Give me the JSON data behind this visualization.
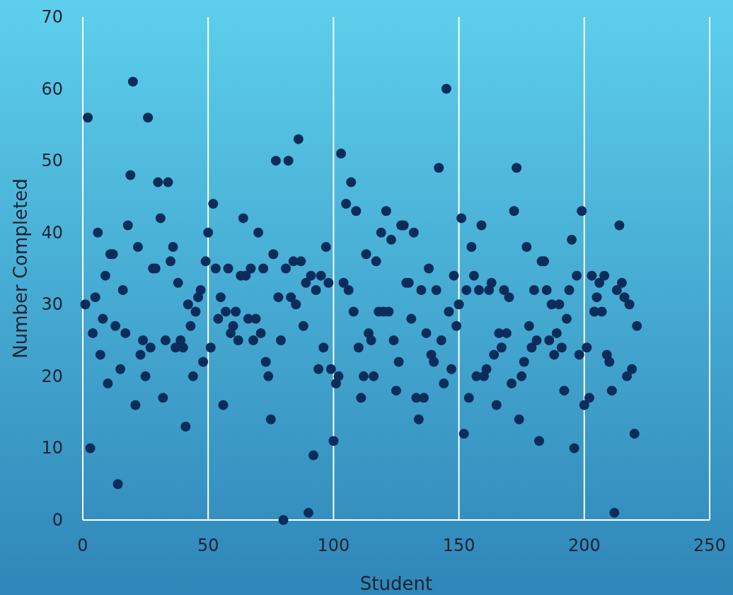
{
  "chart_data": {
    "type": "scatter",
    "xlabel": "Student",
    "ylabel": "Number Completed",
    "xlim": [
      0,
      250
    ],
    "xticks": [
      0,
      50,
      100,
      150,
      200,
      250
    ],
    "ylim": [
      0,
      70
    ],
    "yticks": [
      0,
      10,
      20,
      30,
      40,
      50,
      60,
      70
    ],
    "grid": "x",
    "marker": "circle",
    "series": [
      {
        "color": "#0c2d5c",
        "x": [
          1,
          2,
          3,
          4,
          5,
          6,
          7,
          8,
          9,
          10,
          11,
          12,
          13,
          14,
          15,
          16,
          17,
          18,
          19,
          20,
          21,
          22,
          23,
          24,
          25,
          26,
          27,
          28,
          29,
          30,
          31,
          32,
          33,
          34,
          35,
          36,
          37,
          38,
          39,
          40,
          41,
          42,
          43,
          44,
          45,
          46,
          47,
          48,
          49,
          50,
          51,
          52,
          53,
          54,
          55,
          56,
          57,
          58,
          59,
          60,
          61,
          62,
          63,
          64,
          65,
          66,
          67,
          68,
          69,
          70,
          71,
          72,
          73,
          74,
          75,
          76,
          77,
          78,
          79,
          80,
          81,
          82,
          83,
          84,
          85,
          86,
          87,
          88,
          89,
          90,
          91,
          92,
          93,
          94,
          95,
          96,
          97,
          98,
          99,
          100,
          101,
          102,
          103,
          104,
          105,
          106,
          107,
          108,
          109,
          110,
          111,
          112,
          113,
          114,
          115,
          116,
          117,
          118,
          119,
          120,
          121,
          122,
          123,
          124,
          125,
          126,
          127,
          128,
          129,
          130,
          131,
          132,
          133,
          134,
          135,
          136,
          137,
          138,
          139,
          140,
          141,
          142,
          143,
          144,
          145,
          146,
          147,
          148,
          149,
          150,
          151,
          152,
          153,
          154,
          155,
          156,
          157,
          158,
          159,
          160,
          161,
          162,
          163,
          164,
          165,
          166,
          167,
          168,
          169,
          170,
          171,
          172,
          173,
          174,
          175,
          176,
          177,
          178,
          179,
          180,
          181,
          182,
          183,
          184,
          185,
          186,
          187,
          188,
          189,
          190,
          191,
          192,
          193,
          194,
          195,
          196,
          197,
          198,
          199,
          200,
          201,
          202,
          203,
          204,
          205,
          206,
          207,
          208,
          209,
          210,
          211,
          212,
          213,
          214,
          215,
          216,
          217,
          218,
          219,
          220,
          221
        ],
        "values": [
          30,
          56,
          10,
          26,
          31,
          40,
          23,
          28,
          34,
          19,
          37,
          37,
          27,
          5,
          21,
          32,
          26,
          41,
          48,
          61,
          16,
          38,
          23,
          25,
          20,
          56,
          24,
          35,
          35,
          47,
          42,
          17,
          25,
          47,
          36,
          38,
          24,
          33,
          25,
          24,
          13,
          30,
          27,
          20,
          29,
          31,
          32,
          22,
          36,
          40,
          24,
          44,
          35,
          28,
          31,
          16,
          29,
          35,
          26,
          27,
          29,
          25,
          34,
          42,
          34,
          28,
          35,
          25,
          28,
          40,
          26,
          35,
          22,
          20,
          14,
          37,
          50,
          31,
          25,
          0,
          35,
          50,
          31,
          36,
          30,
          53,
          36,
          27,
          33,
          1,
          34,
          9,
          32,
          21,
          34,
          24,
          38,
          33,
          21,
          11,
          19,
          20,
          51,
          33,
          44,
          32,
          47,
          29,
          43,
          24,
          17,
          20,
          37,
          26,
          25,
          20,
          36,
          29,
          40,
          29,
          43,
          29,
          39,
          25,
          18,
          22,
          41,
          41,
          33,
          33,
          28,
          40,
          17,
          14,
          32,
          17,
          26,
          35,
          23,
          22,
          32,
          49,
          25,
          19,
          60,
          29,
          21,
          34,
          27,
          30,
          42,
          12,
          32,
          17,
          38,
          34,
          20,
          32,
          41,
          20,
          21,
          32,
          33,
          23,
          16,
          26,
          24,
          32,
          26,
          31,
          19,
          43,
          49,
          14,
          20,
          22,
          38,
          27,
          24,
          32,
          25,
          11,
          36,
          36,
          32,
          25,
          30,
          23,
          26,
          30,
          24,
          18,
          28,
          32,
          39,
          10,
          34,
          23,
          43,
          16,
          24,
          17,
          34,
          29,
          31,
          33,
          29,
          34,
          23,
          22,
          18,
          1,
          32,
          41,
          33,
          31,
          20,
          30,
          21,
          12,
          27
        ]
      }
    ]
  }
}
